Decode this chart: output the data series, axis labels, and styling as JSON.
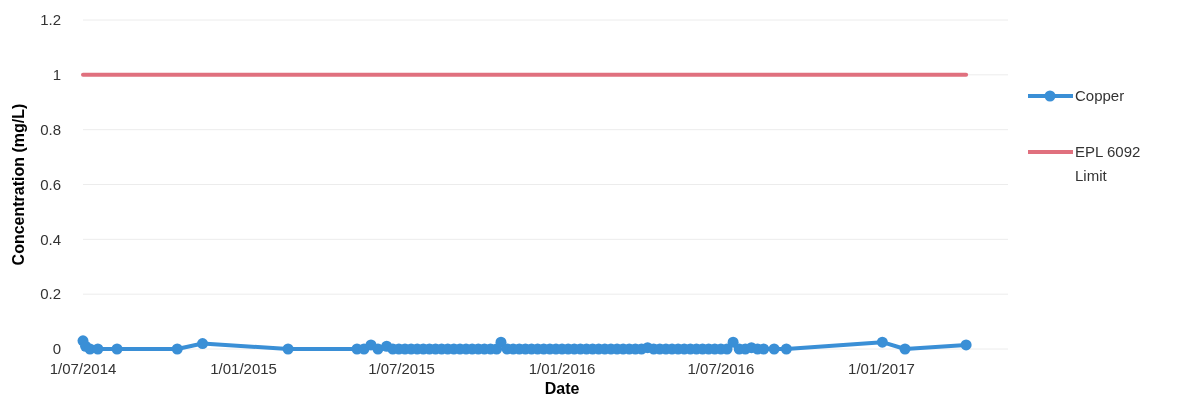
{
  "chart_data": {
    "type": "line",
    "xlabel": "Date",
    "ylabel": "Concentration (mg/L)",
    "ylim": [
      0,
      1.2
    ],
    "yticks": [
      0,
      0.2,
      0.4,
      0.6,
      0.8,
      1,
      1.2
    ],
    "xlim": [
      "2014-07-01",
      "2017-05-26"
    ],
    "xticks": [
      {
        "value": "2014-07-01",
        "label": "1/07/2014"
      },
      {
        "value": "2015-01-01",
        "label": "1/01/2015"
      },
      {
        "value": "2015-07-01",
        "label": "1/07/2015"
      },
      {
        "value": "2016-01-01",
        "label": "1/01/2016"
      },
      {
        "value": "2016-07-01",
        "label": "1/07/2016"
      },
      {
        "value": "2017-01-01",
        "label": "1/01/2017"
      }
    ],
    "grid": "y",
    "legend": "right",
    "marker": "circle",
    "line_style": "solid",
    "series": [
      {
        "name": "Copper",
        "color": "#3a8fd6",
        "x": [
          "2014-07-01",
          "2014-07-04",
          "2014-07-09",
          "2014-07-18",
          "2014-08-09",
          "2014-10-17",
          "2014-11-15",
          "2015-02-21",
          "2015-05-11",
          "2015-05-19",
          "2015-05-27",
          "2015-06-04",
          "2015-06-14",
          "2015-06-21",
          "2015-06-28",
          "2015-07-05",
          "2015-07-12",
          "2015-07-19",
          "2015-07-26",
          "2015-08-02",
          "2015-08-09",
          "2015-08-16",
          "2015-08-23",
          "2015-08-30",
          "2015-09-06",
          "2015-09-13",
          "2015-09-20",
          "2015-09-27",
          "2015-10-04",
          "2015-10-11",
          "2015-10-18",
          "2015-10-23",
          "2015-10-30",
          "2015-11-06",
          "2015-11-13",
          "2015-11-20",
          "2015-11-27",
          "2015-12-04",
          "2015-12-11",
          "2015-12-18",
          "2015-12-25",
          "2016-01-01",
          "2016-01-08",
          "2016-01-15",
          "2016-01-22",
          "2016-01-29",
          "2016-02-05",
          "2016-02-12",
          "2016-02-19",
          "2016-02-26",
          "2016-03-04",
          "2016-03-11",
          "2016-03-18",
          "2016-03-25",
          "2016-04-01",
          "2016-04-08",
          "2016-04-15",
          "2016-04-22",
          "2016-04-29",
          "2016-05-06",
          "2016-05-13",
          "2016-05-20",
          "2016-05-27",
          "2016-06-03",
          "2016-06-10",
          "2016-06-17",
          "2016-06-24",
          "2016-07-01",
          "2016-07-08",
          "2016-07-15",
          "2016-07-22",
          "2016-07-29",
          "2016-08-05",
          "2016-08-12",
          "2016-08-19",
          "2016-08-31",
          "2016-09-14",
          "2017-01-02",
          "2017-01-28",
          "2017-04-08"
        ],
        "values": [
          0.03,
          0.01,
          0,
          0,
          0,
          0,
          0.02,
          0,
          0,
          0,
          0.015,
          0,
          0.01,
          0,
          0,
          0,
          0,
          0,
          0,
          0,
          0,
          0,
          0,
          0,
          0,
          0,
          0,
          0,
          0,
          0,
          0,
          0.025,
          0,
          0,
          0,
          0,
          0,
          0,
          0,
          0,
          0,
          0,
          0,
          0,
          0,
          0,
          0,
          0,
          0,
          0,
          0,
          0,
          0,
          0,
          0,
          0.005,
          0,
          0,
          0,
          0,
          0,
          0,
          0,
          0,
          0,
          0,
          0,
          0,
          0,
          0.025,
          0,
          0,
          0.005,
          0,
          0,
          0,
          0,
          0.025,
          0,
          0.015
        ]
      },
      {
        "name": "EPL 6092 Limit",
        "color": "#e0707e",
        "marker": "none",
        "x": [
          "2014-07-01",
          "2017-04-08"
        ],
        "values": [
          1,
          1
        ]
      }
    ]
  }
}
